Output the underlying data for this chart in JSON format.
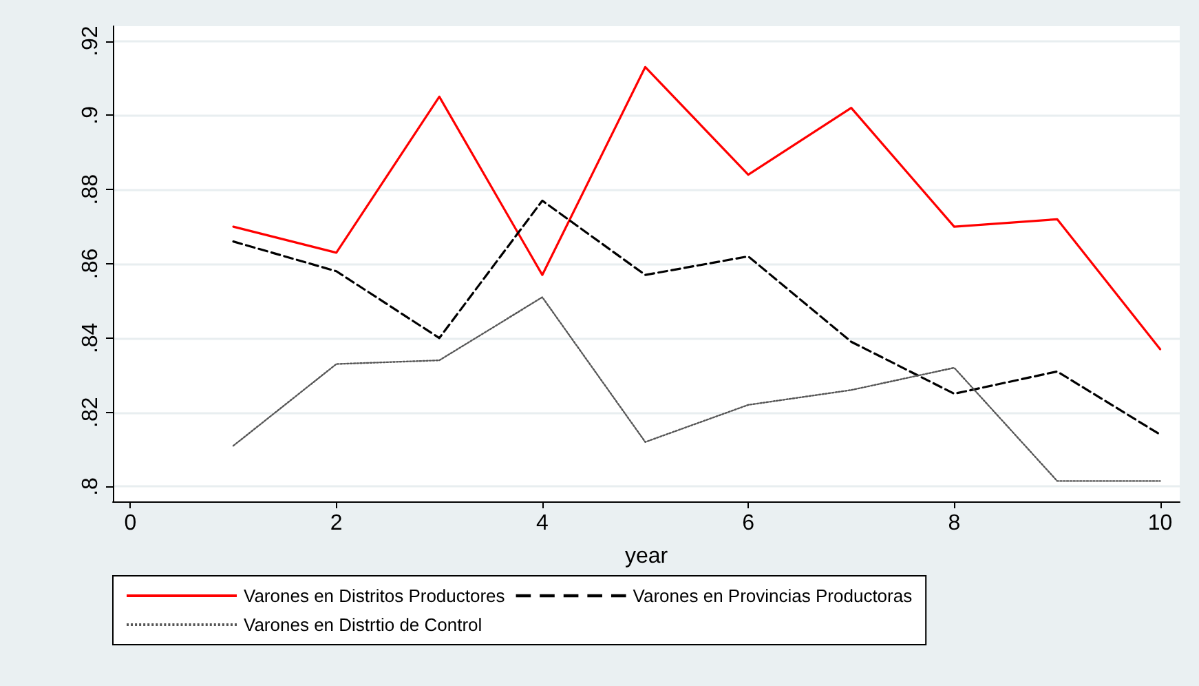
{
  "chart_data": {
    "type": "line",
    "xlabel": "year",
    "x": [
      1,
      2,
      3,
      4,
      5,
      6,
      7,
      8,
      9,
      10
    ],
    "series": [
      {
        "name": "Varones en Distritos Productores",
        "color": "#ff0000",
        "line_style": "solid",
        "values": [
          0.87,
          0.863,
          0.905,
          0.857,
          0.913,
          0.884,
          0.902,
          0.87,
          0.872,
          0.837
        ]
      },
      {
        "name": "Varones en Provincias Productoras",
        "color": "#000000",
        "line_style": "dashed",
        "values": [
          0.866,
          0.858,
          0.84,
          0.877,
          0.857,
          0.862,
          0.839,
          0.825,
          0.831,
          0.814
        ]
      },
      {
        "name": "Varones en Distrtio de Control",
        "color": "#555555",
        "line_style": "dotted",
        "values": [
          0.811,
          0.833,
          0.834,
          0.851,
          0.812,
          0.822,
          0.826,
          0.832,
          0.8015,
          0.8015
        ]
      }
    ],
    "xlim": [
      -0.17,
      10.19
    ],
    "xticks": [
      0,
      2,
      4,
      6,
      8,
      10
    ],
    "ylim": [
      0.796,
      0.924
    ],
    "yticks": [
      {
        "value": 0.8,
        "label": ".8"
      },
      {
        "value": 0.82,
        "label": ".82"
      },
      {
        "value": 0.84,
        "label": ".84"
      },
      {
        "value": 0.86,
        "label": ".86"
      },
      {
        "value": 0.88,
        "label": ".88"
      },
      {
        "value": 0.9,
        "label": ".9"
      },
      {
        "value": 0.92,
        "label": ".92"
      }
    ],
    "grid": "y",
    "legend": "bottom",
    "marker": "none"
  }
}
